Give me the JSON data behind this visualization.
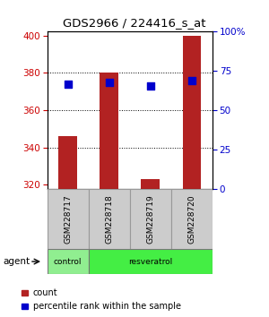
{
  "title": "GDS2966 / 224416_s_at",
  "samples": [
    "GSM228717",
    "GSM228718",
    "GSM228719",
    "GSM228720"
  ],
  "count_values": [
    346,
    380,
    323,
    400
  ],
  "count_base": 318,
  "percentile_values": [
    374,
    375,
    373,
    376
  ],
  "ylim_left": [
    318,
    402
  ],
  "ylim_right": [
    0,
    100
  ],
  "left_ticks": [
    320,
    340,
    360,
    380,
    400
  ],
  "right_ticks": [
    0,
    25,
    50,
    75,
    100
  ],
  "right_tick_labels": [
    "0",
    "25",
    "50",
    "75",
    "100%"
  ],
  "bar_color": "#b22222",
  "dot_color": "#0000cc",
  "grid_ticks": [
    340,
    360,
    380
  ],
  "bar_width": 0.45,
  "dot_size": 28,
  "background_color": "#ffffff",
  "plot_bg": "#ffffff",
  "tick_label_color_left": "#cc0000",
  "tick_label_color_right": "#0000cc",
  "control_color": "#90ee90",
  "resveratrol_color": "#44ee44",
  "sample_box_color": "#cccccc",
  "sample_box_edge": "#999999"
}
